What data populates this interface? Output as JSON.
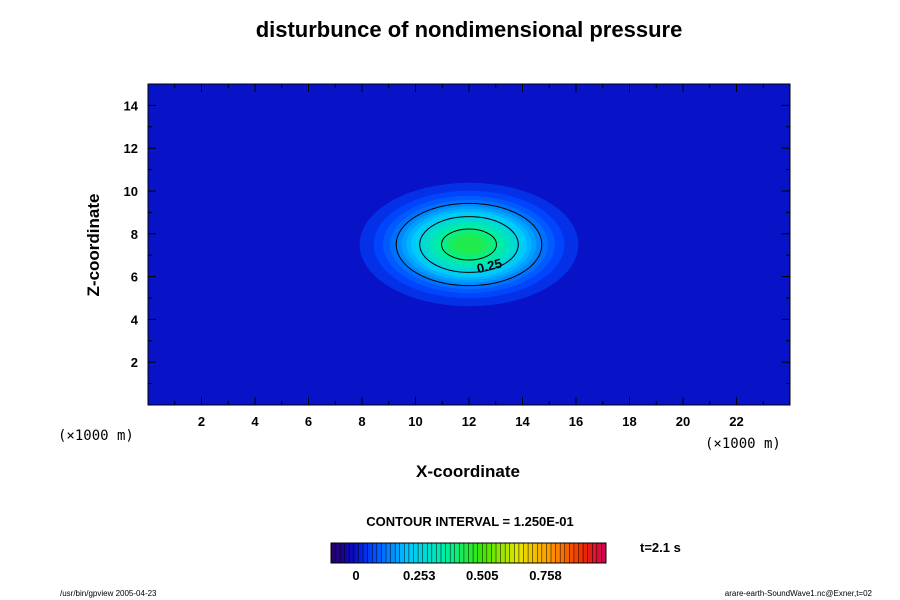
{
  "chart_data": {
    "type": "heatmap",
    "title": "disturbunce of nondimensional pressure",
    "xlabel": "X-coordinate",
    "ylabel": "Z-coordinate",
    "x_unit": "(×1000 m)",
    "y_unit": "(×1000 m)",
    "xlim": [
      0,
      24
    ],
    "ylim": [
      0,
      15
    ],
    "xticks": [
      2,
      4,
      6,
      8,
      10,
      12,
      14,
      16,
      18,
      20,
      22
    ],
    "yticks": [
      2,
      4,
      6,
      8,
      10,
      12,
      14
    ],
    "field": {
      "shape": "gaussian",
      "center": [
        12,
        7.5
      ],
      "sigma": [
        1.7,
        1.2
      ],
      "amplitude": 0.45,
      "color_range": [
        -0.1,
        1.0
      ]
    },
    "contour_interval_text": "CONTOUR INTERVAL = 1.250E-01",
    "contour_levels": [
      0.125,
      0.25,
      0.375
    ],
    "contour_labels": [
      {
        "level": 0.25,
        "text": "0.25",
        "x": 12.8,
        "z": 6.3
      }
    ],
    "colorbar": {
      "ticks": [
        {
          "value": 0,
          "label": "0"
        },
        {
          "value": 0.253,
          "label": "0.253"
        },
        {
          "value": 0.505,
          "label": "0.505"
        },
        {
          "value": 0.758,
          "label": "0.758"
        }
      ],
      "range": [
        -0.1,
        1.0
      ],
      "n_bins": 60
    },
    "time_label": "t=2.1 s",
    "footer_left": "/usr/bin/gpview 2005-04-23",
    "footer_right": "arare-earth-SoundWave1.nc@Exner,t=02"
  }
}
